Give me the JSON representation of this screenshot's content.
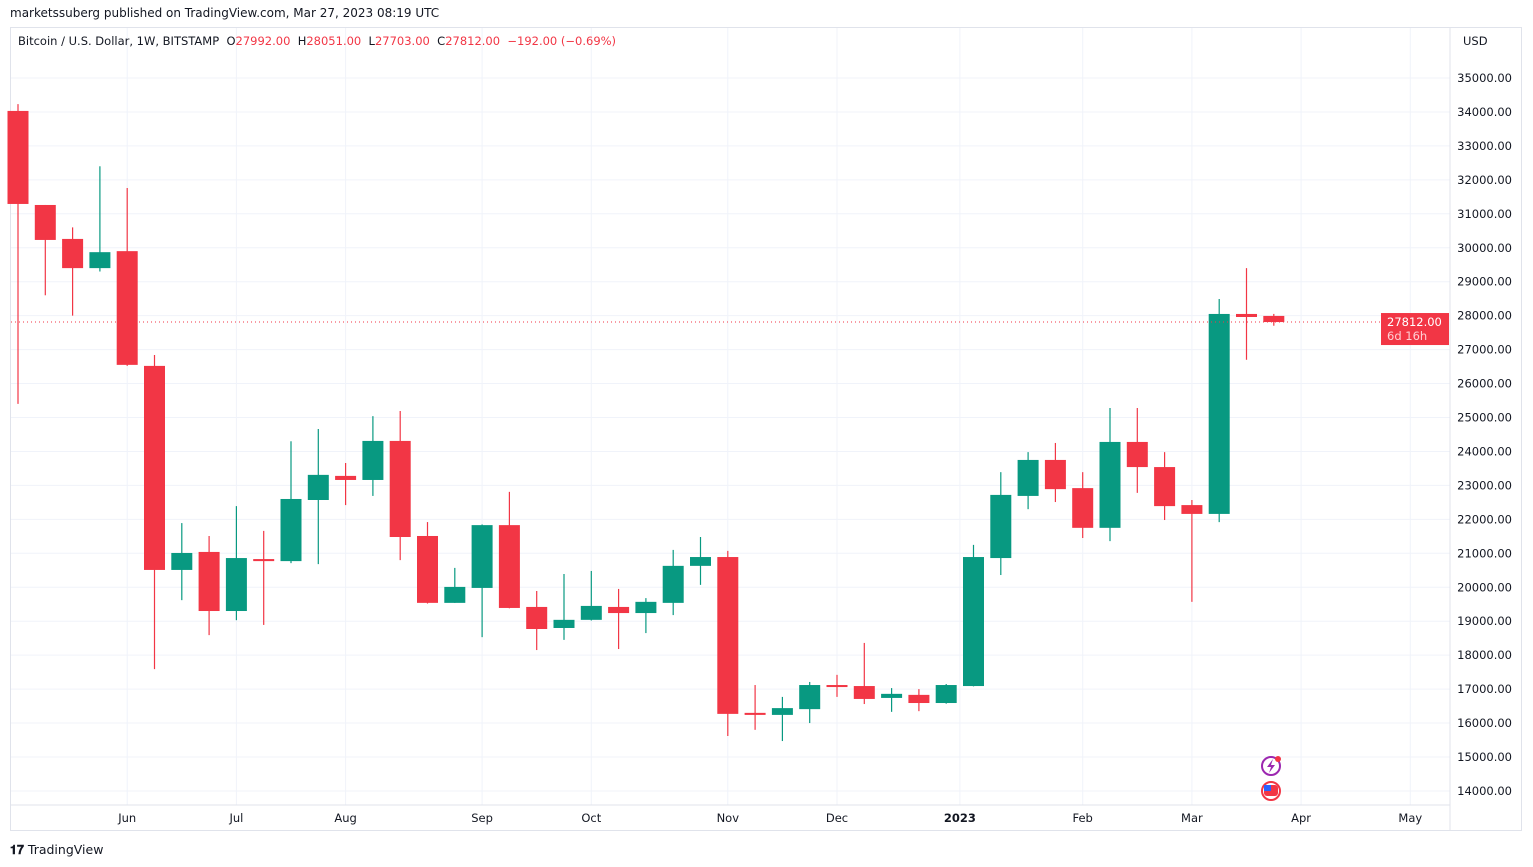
{
  "header": {
    "published": "marketssuberg published on TradingView.com, Mar 27, 2023 08:19 UTC"
  },
  "legend": {
    "symbol": "Bitcoin / U.S. Dollar, 1W, BITSTAMP",
    "o_label": "O",
    "o": "27992.00",
    "h_label": "H",
    "h": "28051.00",
    "l_label": "L",
    "l": "27703.00",
    "c_label": "C",
    "c": "27812.00",
    "change": "−192.00 (−0.69%)"
  },
  "currency": "USD",
  "last_price": {
    "value": "27812.00",
    "countdown": "6d 16h"
  },
  "footer": {
    "brand": "TradingView"
  },
  "colors": {
    "up": "#089981",
    "down": "#f23645",
    "grid": "#f0f3fa"
  },
  "icons": [
    "lightning-event-icon",
    "us-flag-event-icon"
  ],
  "chart_data": {
    "type": "candlestick",
    "title": "Bitcoin / U.S. Dollar, 1W, BITSTAMP",
    "ylim": [
      13500,
      35800
    ],
    "y_ticks": [
      "35000.00",
      "34000.00",
      "33000.00",
      "32000.00",
      "31000.00",
      "30000.00",
      "29000.00",
      "28000.00",
      "27000.00",
      "26000.00",
      "25000.00",
      "24000.00",
      "23000.00",
      "22000.00",
      "21000.00",
      "20000.00",
      "19000.00",
      "18000.00",
      "17000.00",
      "16000.00",
      "15000.00",
      "14000.00"
    ],
    "x_ticks": [
      {
        "label": "Jun",
        "index": 4
      },
      {
        "label": "Jul",
        "index": 8
      },
      {
        "label": "Aug",
        "index": 12
      },
      {
        "label": "Sep",
        "index": 17
      },
      {
        "label": "Oct",
        "index": 21
      },
      {
        "label": "Nov",
        "index": 26
      },
      {
        "label": "Dec",
        "index": 30
      },
      {
        "label": "2023",
        "index": 34.5,
        "bold": true
      },
      {
        "label": "Feb",
        "index": 39
      },
      {
        "label": "Mar",
        "index": 43
      },
      {
        "label": "Apr",
        "index": 47
      },
      {
        "label": "May",
        "index": 51
      }
    ],
    "ohlc": [
      [
        34030,
        34230,
        25400,
        31290
      ],
      [
        31260,
        31260,
        28600,
        30230
      ],
      [
        30260,
        30600,
        28000,
        29400
      ],
      [
        29400,
        32400,
        29300,
        29870
      ],
      [
        29900,
        31760,
        26520,
        26550
      ],
      [
        26520,
        26840,
        17590,
        20510
      ],
      [
        20510,
        21890,
        19620,
        21010
      ],
      [
        21040,
        21510,
        18590,
        19300
      ],
      [
        19300,
        22390,
        19030,
        20860
      ],
      [
        20830,
        21660,
        18890,
        20770
      ],
      [
        20770,
        24300,
        20710,
        22600
      ],
      [
        22570,
        24660,
        20680,
        23310
      ],
      [
        23280,
        23660,
        22420,
        23160
      ],
      [
        23160,
        25040,
        22690,
        24310
      ],
      [
        24310,
        25190,
        20800,
        21480
      ],
      [
        21510,
        21920,
        19520,
        19540
      ],
      [
        19540,
        20570,
        19540,
        20010
      ],
      [
        19980,
        21850,
        18530,
        21830
      ],
      [
        21830,
        22810,
        19380,
        19390
      ],
      [
        19420,
        19890,
        18150,
        18770
      ],
      [
        18800,
        20390,
        18450,
        19040
      ],
      [
        19040,
        20480,
        19020,
        19450
      ],
      [
        19420,
        19950,
        18180,
        19240
      ],
      [
        19240,
        19680,
        18650,
        19570
      ],
      [
        19540,
        21100,
        19180,
        20630
      ],
      [
        20630,
        21480,
        20070,
        20890
      ],
      [
        20890,
        21070,
        15620,
        16270
      ],
      [
        16300,
        17120,
        15800,
        16240
      ],
      [
        16240,
        16770,
        15470,
        16440
      ],
      [
        16410,
        17210,
        16000,
        17120
      ],
      [
        17120,
        17420,
        16770,
        17060
      ],
      [
        17090,
        18360,
        16560,
        16710
      ],
      [
        16740,
        17030,
        16330,
        16860
      ],
      [
        16830,
        17000,
        16350,
        16590
      ],
      [
        16590,
        17150,
        16570,
        17120
      ],
      [
        17090,
        21250,
        17080,
        20890
      ],
      [
        20860,
        23390,
        20360,
        22720
      ],
      [
        22690,
        23980,
        22300,
        23750
      ],
      [
        23750,
        24250,
        22510,
        22890
      ],
      [
        22920,
        23390,
        21450,
        21750
      ],
      [
        21750,
        25280,
        21360,
        24280
      ],
      [
        24280,
        25280,
        22780,
        23540
      ],
      [
        23540,
        23980,
        21980,
        22390
      ],
      [
        22420,
        22570,
        19570,
        22160
      ],
      [
        22160,
        28490,
        21920,
        28050
      ],
      [
        28050,
        29400,
        26700,
        27960
      ],
      [
        27992,
        28051,
        27703,
        27812
      ]
    ]
  }
}
